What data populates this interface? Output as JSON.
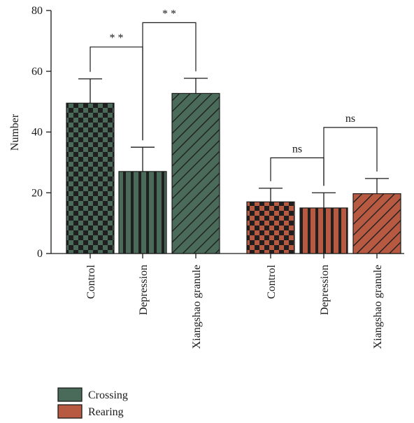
{
  "chart_data": {
    "type": "bar",
    "ylabel": "Number",
    "ylim": [
      0,
      80
    ],
    "yticks": [
      0,
      20,
      40,
      60,
      80
    ],
    "grid": false,
    "legend_position": "bottom-left",
    "colors": {
      "Crossing": "#4a6b5a",
      "Rearing": "#b85a42",
      "dark": "#1f1f1f"
    },
    "groups": [
      {
        "series": "Crossing",
        "bars": [
          {
            "category": "Control",
            "value": 49.5,
            "error": 8.0,
            "pattern": "checker"
          },
          {
            "category": "Depression",
            "value": 27.0,
            "error": 8.0,
            "pattern": "vstripe"
          },
          {
            "category": "Xiangshao granule",
            "value": 52.7,
            "error": 5.0,
            "pattern": "diag"
          }
        ]
      },
      {
        "series": "Rearing",
        "bars": [
          {
            "category": "Control",
            "value": 17.0,
            "error": 4.5,
            "pattern": "checker"
          },
          {
            "category": "Depression",
            "value": 15.0,
            "error": 5.0,
            "pattern": "vstripe"
          },
          {
            "category": "Xiangshao granule",
            "value": 19.7,
            "error": 5.0,
            "pattern": "diag"
          }
        ]
      }
    ],
    "significance": [
      {
        "group": 0,
        "from": 0,
        "to": 1,
        "label": "* *",
        "level": 68
      },
      {
        "group": 0,
        "from": 1,
        "to": 2,
        "label": "* *",
        "level": 76
      },
      {
        "group": 1,
        "from": 0,
        "to": 1,
        "label": "ns",
        "level": 31.5
      },
      {
        "group": 1,
        "from": 1,
        "to": 2,
        "label": "ns",
        "level": 41.5
      }
    ],
    "legend": [
      {
        "label": "Crossing",
        "color": "#4a6b5a"
      },
      {
        "label": "Rearing",
        "color": "#b85a42"
      }
    ]
  }
}
